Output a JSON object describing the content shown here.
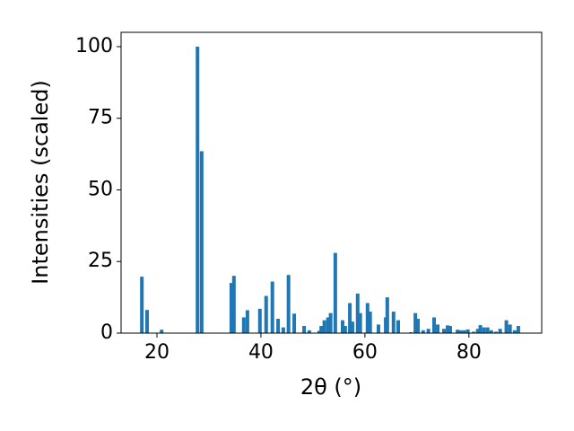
{
  "chart_data": {
    "type": "bar",
    "xlabel": "2θ (°)",
    "ylabel": "Intensities (scaled)",
    "color": "#1f77b4",
    "x": [
      17.1,
      18.1,
      20.9,
      27.8,
      28.6,
      34.3,
      34.8,
      36.7,
      37.4,
      39.8,
      41.0,
      42.2,
      43.3,
      44.3,
      45.3,
      46.4,
      48.3,
      49.3,
      51.2,
      51.6,
      52.2,
      52.9,
      53.4,
      54.3,
      55.7,
      56.2,
      57.1,
      57.6,
      58.6,
      59.1,
      60.5,
      61.0,
      62.6,
      64.0,
      64.3,
      65.5,
      66.4,
      68.8,
      69.7,
      70.2,
      71.2,
      72.2,
      73.3,
      74.0,
      75.2,
      75.9,
      76.4,
      77.8,
      78.4,
      79.1,
      79.8,
      80.9,
      81.7,
      82.2,
      82.9,
      83.6,
      84.3,
      85.2,
      86.0,
      87.2,
      87.9,
      88.8,
      89.5
    ],
    "values": [
      19.7,
      8.1,
      1.2,
      100,
      63.5,
      17.5,
      20,
      5.5,
      8,
      8.5,
      13,
      18,
      5,
      2,
      20.3,
      6.8,
      2.5,
      1,
      0.8,
      2.5,
      4.5,
      5.5,
      7,
      28,
      4.5,
      2.5,
      10.5,
      4,
      13.8,
      7,
      10.5,
      7.5,
      3,
      5.5,
      12.5,
      7.5,
      4.5,
      0.3,
      7,
      5,
      1,
      1.5,
      5.5,
      3,
      1.5,
      2.7,
      2.5,
      1.2,
      1,
      1,
      1.3,
      0.5,
      1.5,
      2.8,
      2,
      2,
      1,
      0.5,
      1.5,
      4.5,
      3,
      1,
      2.5
    ],
    "xlim": [
      13.1,
      94
    ],
    "xticks": [
      20,
      40,
      60,
      80
    ],
    "ylim": [
      0,
      105
    ],
    "yticks": [
      0,
      25,
      50,
      75,
      100
    ]
  }
}
